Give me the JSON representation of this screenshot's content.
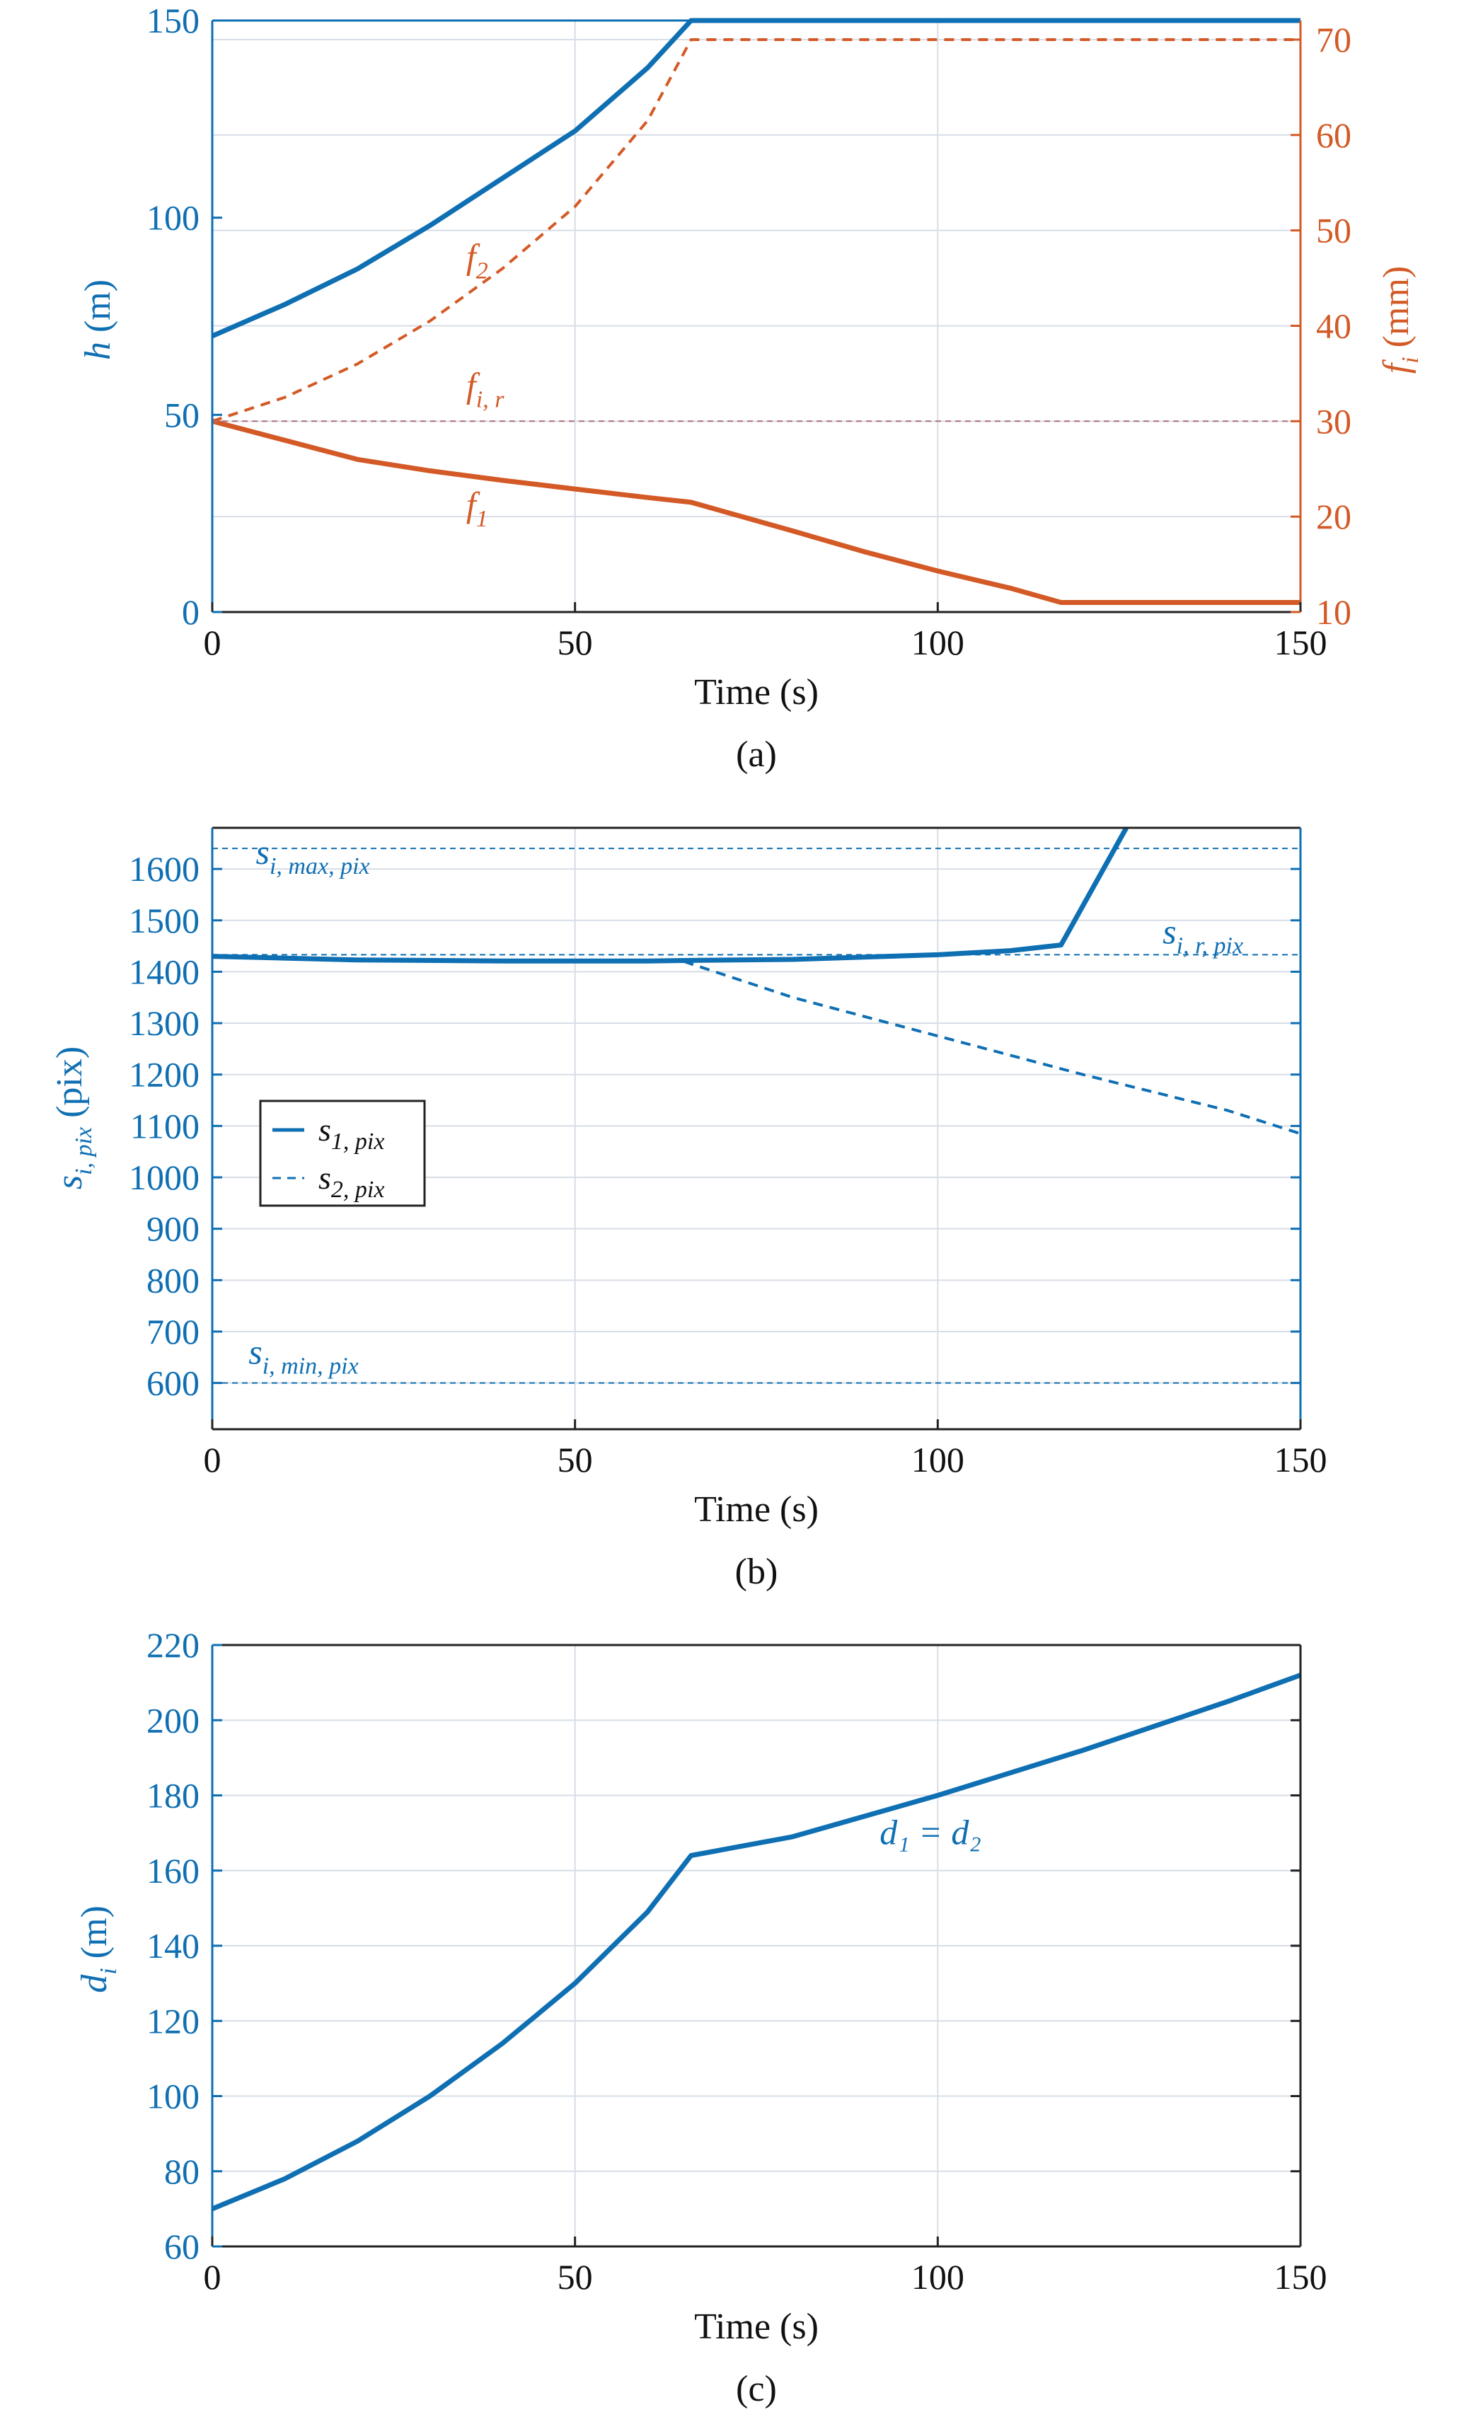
{
  "colors": {
    "blue": "#0f6fb3",
    "orange": "#d35a26",
    "frame": "#222222",
    "grid": "#d7dde6",
    "reference": "#b07080"
  },
  "chart_data": [
    {
      "type": "line",
      "caption": "(a)",
      "xlabel": "Time (s)",
      "ylabel": "h (m)",
      "y2label": "f_i (mm)",
      "xlim": [
        0,
        150
      ],
      "ylim": [
        0,
        150
      ],
      "y2lim": [
        10,
        72
      ],
      "xticks": [
        0,
        50,
        100,
        150
      ],
      "yticks": [
        0,
        50,
        100,
        150
      ],
      "y2ticks": [
        10,
        20,
        30,
        40,
        50,
        60,
        70
      ],
      "grid": true,
      "series": [
        {
          "name": "h",
          "axis": "left",
          "style": "solid",
          "color": "#0f6fb3",
          "x": [
            0,
            10,
            20,
            30,
            40,
            50,
            60,
            66,
            80,
            100,
            120,
            150
          ],
          "y": [
            70,
            78,
            87,
            98,
            110,
            122,
            138,
            150,
            150,
            150,
            150,
            150
          ]
        },
        {
          "name": "f2",
          "axis": "right",
          "style": "dashed",
          "color": "#d35a26",
          "x": [
            0,
            10,
            20,
            30,
            40,
            50,
            60,
            66,
            80,
            100,
            120,
            150
          ],
          "y": [
            30,
            32.5,
            36,
            40.5,
            46,
            52.5,
            61.5,
            70,
            70,
            70,
            70,
            70
          ]
        },
        {
          "name": "f1",
          "axis": "right",
          "style": "solid",
          "color": "#d35a26",
          "x": [
            0,
            10,
            20,
            30,
            40,
            50,
            60,
            66,
            80,
            90,
            100,
            110,
            117,
            130,
            150
          ],
          "y": [
            30,
            28,
            26,
            24.8,
            23.8,
            22.9,
            22,
            21.5,
            18.5,
            16.3,
            14.3,
            12.5,
            11,
            11,
            11
          ]
        },
        {
          "name": "fi,r",
          "axis": "right",
          "style": "reference",
          "color": "#b07080",
          "x": [
            0,
            150
          ],
          "y": [
            30,
            30
          ]
        }
      ],
      "annotations": [
        {
          "base": "f",
          "sub": "2",
          "x": 35,
          "y": 46,
          "axis": "right",
          "color": "#d35a26"
        },
        {
          "base": "f",
          "sub": "i, r",
          "x": 35,
          "y": 32.5,
          "axis": "right",
          "color": "#d35a26"
        },
        {
          "base": "f",
          "sub": "1",
          "x": 35,
          "y": 20,
          "axis": "right",
          "color": "#d35a26"
        }
      ]
    },
    {
      "type": "line",
      "caption": "(b)",
      "xlabel": "Time (s)",
      "ylabel": "s_i,pix (pix)",
      "xlim": [
        0,
        150
      ],
      "ylim": [
        510,
        1680
      ],
      "xticks": [
        0,
        50,
        100,
        150
      ],
      "yticks": [
        600,
        700,
        800,
        900,
        1000,
        1100,
        1200,
        1300,
        1400,
        1500,
        1600
      ],
      "grid": true,
      "legend": {
        "placement": "left",
        "entries": [
          {
            "name": "s1,pix",
            "style": "solid"
          },
          {
            "name": "s2,pix",
            "style": "dashed"
          }
        ]
      },
      "series": [
        {
          "name": "s1,pix",
          "style": "solid",
          "color": "#0f6fb3",
          "x": [
            0,
            20,
            40,
            60,
            66,
            80,
            100,
            110,
            117,
            126
          ],
          "y": [
            1430,
            1423,
            1421,
            1421,
            1422,
            1424,
            1433,
            1441,
            1452,
            1680
          ]
        },
        {
          "name": "s2,pix",
          "style": "dashed",
          "color": "#0f6fb3",
          "x": [
            65,
            80,
            100,
            120,
            140,
            150
          ],
          "y": [
            1420,
            1350,
            1275,
            1200,
            1130,
            1085
          ]
        },
        {
          "name": "s_i,max,pix",
          "style": "reference",
          "color": "#0f6fb3",
          "x": [
            0,
            150
          ],
          "y": [
            1640,
            1640
          ]
        },
        {
          "name": "s_i,r,pix",
          "style": "reference",
          "color": "#0f6fb3",
          "x": [
            0,
            150
          ],
          "y": [
            1433,
            1433
          ]
        },
        {
          "name": "s_i,min,pix",
          "style": "reference",
          "color": "#0f6fb3",
          "x": [
            0,
            150
          ],
          "y": [
            600,
            600
          ]
        }
      ],
      "annotations": [
        {
          "base": "s",
          "sub": "i, max, pix",
          "x": 6,
          "y": 1610,
          "color": "#0f6fb3"
        },
        {
          "base": "s",
          "sub": "i, r, pix",
          "x": 131,
          "y": 1455,
          "color": "#0f6fb3"
        },
        {
          "base": "s",
          "sub": "i, min, pix",
          "x": 5,
          "y": 637,
          "color": "#0f6fb3"
        }
      ]
    },
    {
      "type": "line",
      "caption": "(c)",
      "xlabel": "Time (s)",
      "ylabel": "d_i (m)",
      "xlim": [
        0,
        150
      ],
      "ylim": [
        60,
        220
      ],
      "xticks": [
        0,
        50,
        100,
        150
      ],
      "yticks": [
        60,
        80,
        100,
        120,
        140,
        160,
        180,
        200,
        220
      ],
      "grid": true,
      "series": [
        {
          "name": "d1 = d2",
          "style": "solid",
          "color": "#0f6fb3",
          "x": [
            0,
            10,
            20,
            30,
            40,
            50,
            60,
            66,
            80,
            100,
            120,
            140,
            150
          ],
          "y": [
            70,
            78,
            88,
            100,
            114,
            130,
            149,
            164,
            169,
            180,
            192,
            205,
            212
          ]
        }
      ],
      "annotations": [
        {
          "text": "d₁ = d₂",
          "x": 92,
          "y": 167,
          "color": "#0f6fb3"
        }
      ]
    }
  ],
  "labels": {
    "a": {
      "xlabel": "Time (s)",
      "ylabel_base": "h",
      "ylabel_unit": " (m)",
      "y2label_base": "f",
      "y2label_sub": "i",
      "y2label_unit": " (mm)",
      "caption": "(a)"
    },
    "b": {
      "xlabel": "Time (s)",
      "ylabel_base": "s",
      "ylabel_sub": "i, pix",
      "ylabel_unit": " (pix)",
      "caption": "(b)",
      "legend_s1_base": "s",
      "legend_s1_sub": "1, pix",
      "legend_s2_base": "s",
      "legend_s2_sub": "2, pix"
    },
    "c": {
      "xlabel": "Time (s)",
      "ylabel_base": "d",
      "ylabel_sub": "i",
      "ylabel_unit": " (m)",
      "caption": "(c)"
    }
  }
}
